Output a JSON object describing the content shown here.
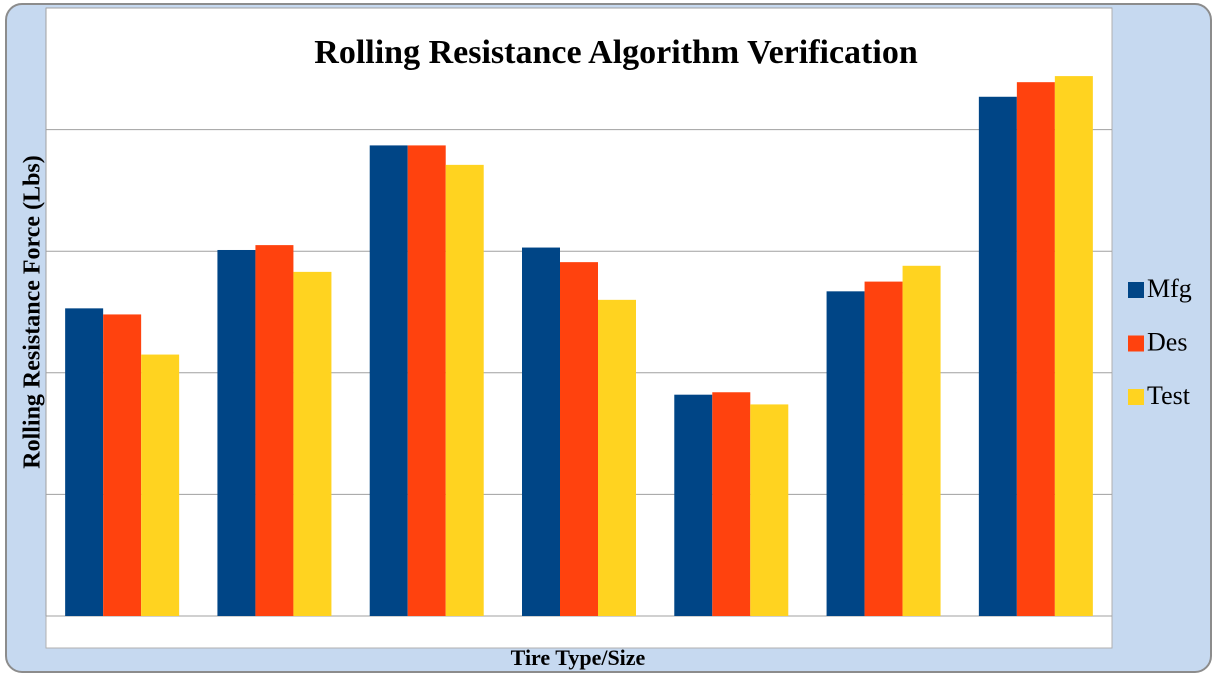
{
  "chart_data": {
    "type": "bar",
    "title": "Rolling Resistance Algorithm Verification",
    "x_label": "Tire Type/Size",
    "y_label": "Rolling Resistance Force (Lbs)",
    "categories": [
      null,
      null,
      null,
      null,
      null,
      null,
      null
    ],
    "series": [
      {
        "name": "Mfg",
        "color": "#004586",
        "values": [
          2.53,
          3.01,
          3.87,
          3.03,
          1.82,
          2.67,
          4.27
        ]
      },
      {
        "name": "Des",
        "color": "#ff420e",
        "values": [
          2.48,
          3.05,
          3.87,
          2.91,
          1.84,
          2.75,
          4.39
        ]
      },
      {
        "name": "Test",
        "color": "#ffd320",
        "values": [
          2.15,
          2.83,
          3.71,
          2.6,
          1.74,
          2.88,
          4.44
        ]
      }
    ],
    "ylim": [
      0,
      5
    ],
    "yticks": [
      0,
      1,
      2,
      3,
      4,
      5
    ],
    "grid": true,
    "legend": "right"
  }
}
